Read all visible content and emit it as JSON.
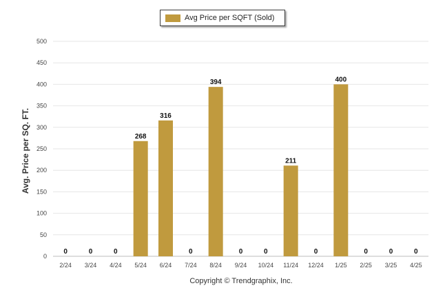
{
  "chart_data": {
    "type": "bar",
    "categories": [
      "2/24",
      "3/24",
      "4/24",
      "5/24",
      "6/24",
      "7/24",
      "8/24",
      "9/24",
      "10/24",
      "11/24",
      "12/24",
      "1/25",
      "2/25",
      "3/25",
      "4/25"
    ],
    "series": [
      {
        "name": "Avg Price per SQFT (Sold)",
        "values": [
          0,
          0,
          0,
          268,
          316,
          0,
          394,
          0,
          0,
          211,
          0,
          400,
          0,
          0,
          0
        ]
      }
    ],
    "ylabel": "Avg. Price per SQ. FT.",
    "ylim": [
      0,
      500
    ],
    "yticks": [
      0,
      50,
      100,
      150,
      200,
      250,
      300,
      350,
      400,
      450,
      500
    ],
    "grid": true,
    "legend_position": "top-center",
    "bar_color": "#c09a3e"
  },
  "footer": {
    "copyright": "Copyright © Trendgraphix, Inc."
  }
}
